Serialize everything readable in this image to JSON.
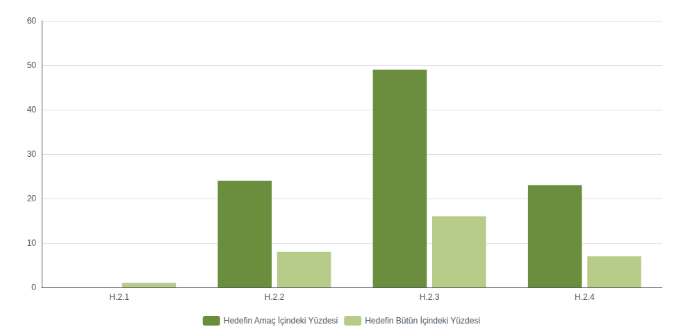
{
  "chart_data": {
    "type": "bar",
    "categories": [
      "H.2.1",
      "H.2.2",
      "H.2.3",
      "H.2.4"
    ],
    "series": [
      {
        "name": "Hedefin Amaç İçindeki Yüzdesi",
        "color": "#6b8e3e",
        "values": [
          0,
          24,
          49,
          23
        ]
      },
      {
        "name": "Hedefin Bütün İçindeki Yüzdesi",
        "color": "#b8cc8a",
        "values": [
          1,
          8,
          16,
          7
        ]
      }
    ],
    "ylim": [
      0,
      60
    ],
    "yticks": [
      0,
      10,
      20,
      30,
      40,
      50,
      60
    ],
    "grid": true,
    "legend": "bottom"
  }
}
